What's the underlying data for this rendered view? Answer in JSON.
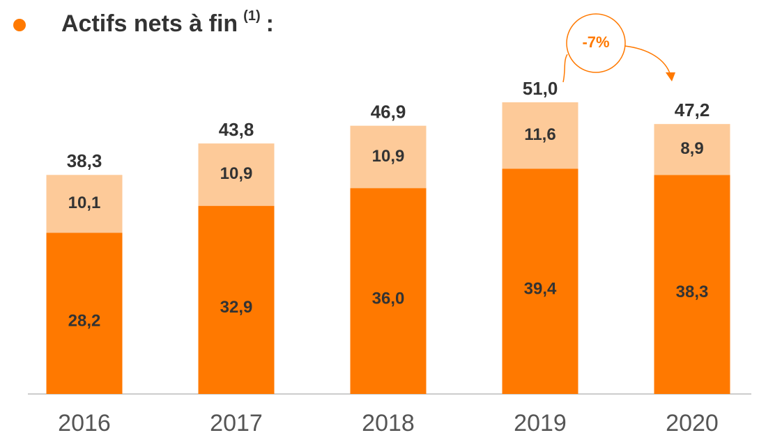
{
  "chart_data": {
    "type": "stacked_bar",
    "title": "Actifs nets à fin",
    "title_superscript": "(1)",
    "title_suffix": ":",
    "categories": [
      "2016",
      "2017",
      "2018",
      "2019",
      "2020"
    ],
    "series": [
      {
        "color": "#ff7900",
        "values": [
          28.2,
          32.9,
          36.0,
          39.4,
          38.3
        ],
        "value_labels": [
          "28,2",
          "32,9",
          "36,0",
          "39,4",
          "38,3"
        ]
      },
      {
        "color": "#fdca99",
        "values": [
          10.1,
          10.9,
          10.9,
          11.6,
          8.9
        ],
        "value_labels": [
          "10,1",
          "10,9",
          "10,9",
          "11,6",
          "8,9"
        ]
      }
    ],
    "totals": [
      38.3,
      43.8,
      46.9,
      51.0,
      47.2
    ],
    "total_labels": [
      "38,3",
      "43,8",
      "46,9",
      "51,0",
      "47,2"
    ],
    "annotation": "-7%",
    "ylim": [
      0,
      60
    ]
  }
}
